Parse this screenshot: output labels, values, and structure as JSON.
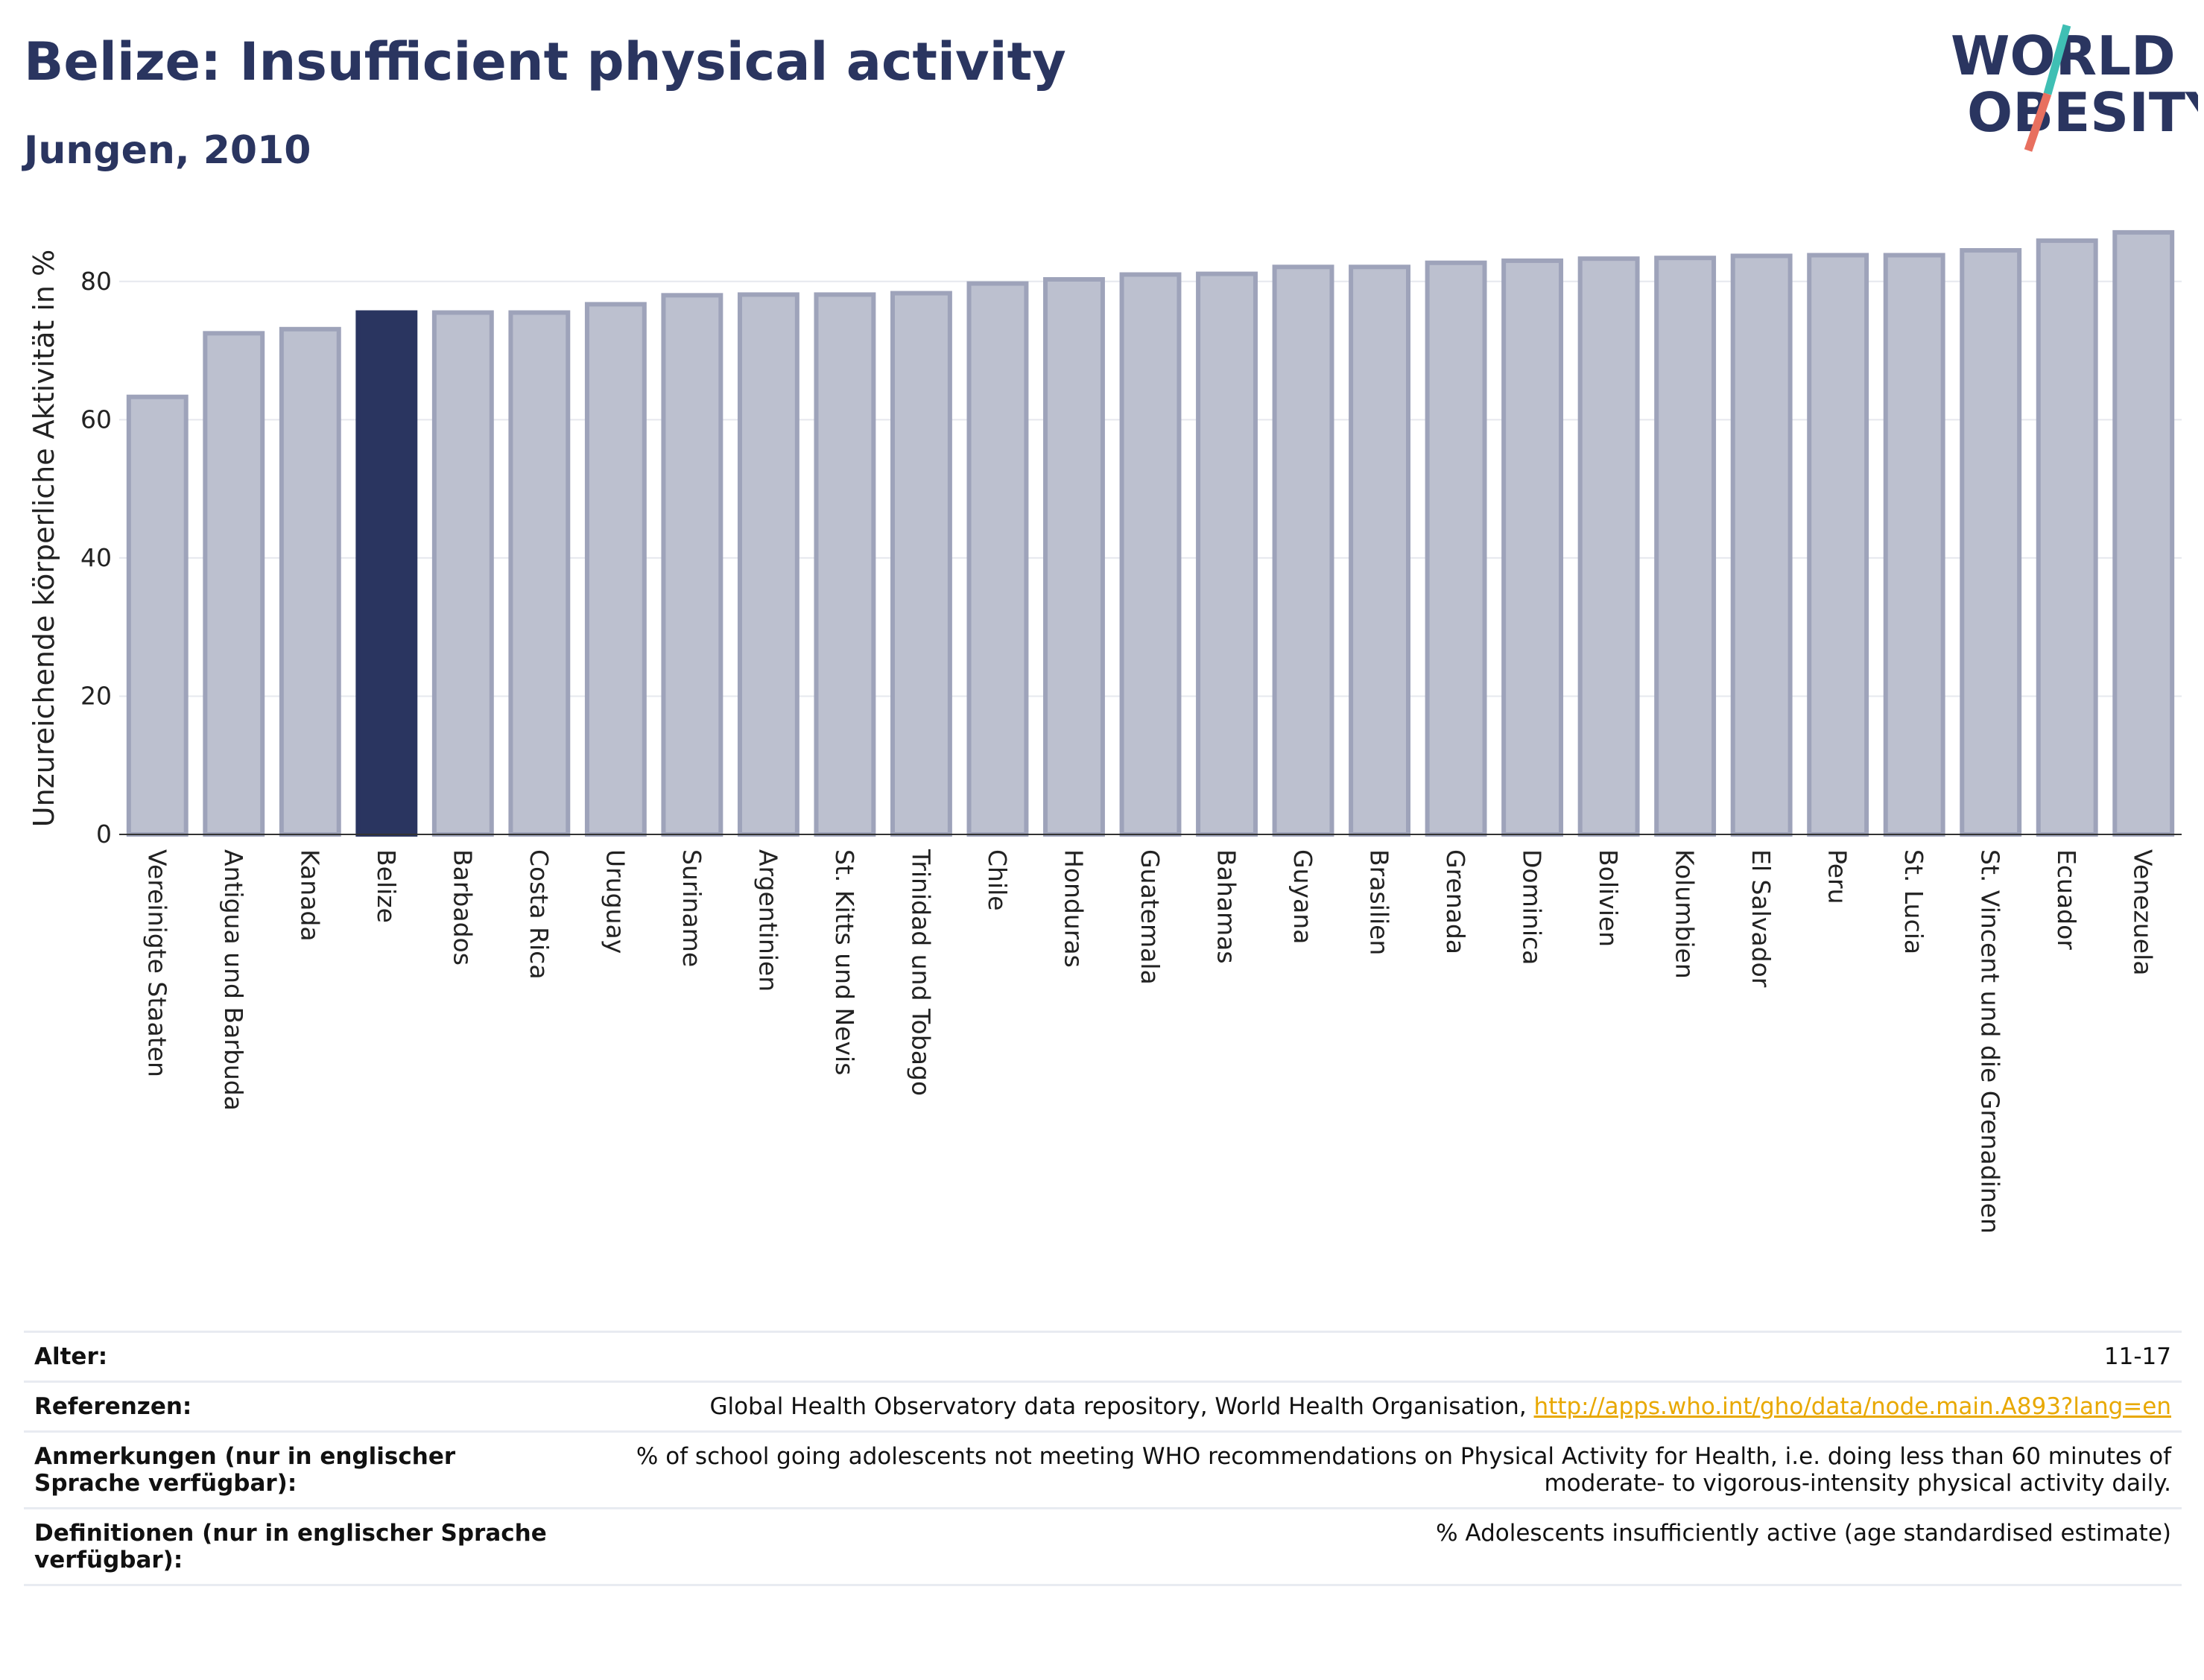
{
  "header": {
    "title": "Belize: Insufficient physical activity",
    "subtitle": "Jungen, 2010"
  },
  "logo": {
    "line1": "WORLD",
    "line2": "OBESITY"
  },
  "colors": {
    "highlight": "#2a3560",
    "bar_fill": "#bcc0cf",
    "bar_stroke": "#9ea3ba",
    "logo_teal": "#3fbfb4",
    "logo_red": "#e8705f",
    "link": "#e8a800"
  },
  "chart_data": {
    "type": "bar",
    "title": "Belize: Insufficient physical activity",
    "subtitle": "Jungen, 2010",
    "xlabel": "",
    "ylabel": "Unzureichende körperliche Aktivität in %",
    "ylim": [
      0,
      90
    ],
    "yticks": [
      0,
      20,
      40,
      60,
      80
    ],
    "grid": true,
    "highlight": "Belize",
    "categories": [
      "Vereinigte Staaten",
      "Antigua und Barbuda",
      "Kanada",
      "Belize",
      "Barbados",
      "Costa Rica",
      "Uruguay",
      "Suriname",
      "Argentinien",
      "St. Kitts und Nevis",
      "Trinidad und Tobago",
      "Chile",
      "Honduras",
      "Guatemala",
      "Bahamas",
      "Guyana",
      "Brasilien",
      "Grenada",
      "Dominica",
      "Bolivien",
      "Kolumbien",
      "El Salvador",
      "Peru",
      "St. Lucia",
      "St. Vincent und die Grenadinen",
      "Ecuador",
      "Venezuela"
    ],
    "values": [
      63.3,
      72.5,
      73.1,
      75.5,
      75.5,
      75.5,
      76.7,
      78.0,
      78.1,
      78.1,
      78.3,
      79.7,
      80.3,
      81.0,
      81.1,
      82.1,
      82.1,
      82.7,
      83.0,
      83.3,
      83.4,
      83.7,
      83.8,
      83.8,
      84.5,
      85.9,
      87.1
    ]
  },
  "info": [
    {
      "label": "Alter:",
      "value": "11-17"
    },
    {
      "label": "Referenzen:",
      "value": "Global Health Observatory data repository, World Health Organisation, ",
      "link": "http://apps.who.int/gho/data/node.main.A893?lang=en"
    },
    {
      "label": "Anmerkungen (nur in englischer Sprache verfügbar):",
      "value": "% of school going adolescents not meeting WHO recommendations on Physical Activity for Health, i.e. doing less than 60 minutes of moderate- to vigorous-intensity physical activity daily."
    },
    {
      "label": "Definitionen (nur in englischer Sprache verfügbar):",
      "value": "% Adolescents insufficiently active (age standardised estimate)"
    }
  ]
}
